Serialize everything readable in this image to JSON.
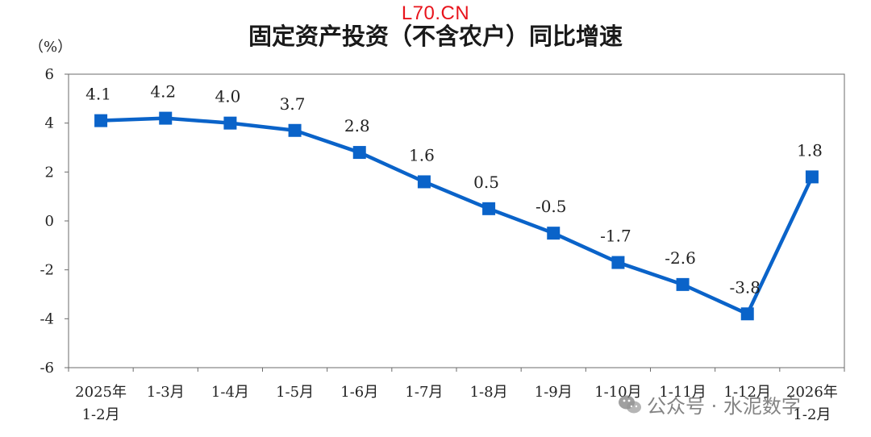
{
  "watermark_top": "L70.CN",
  "watermark_bottom": "公众号 · 水泥数字",
  "colors": {
    "series": "#0a63c9",
    "axis": "#555555",
    "text": "#222222",
    "watermark": "#e8141c"
  },
  "chart_data": {
    "type": "line",
    "title": "固定资产投资（不含农户）同比增速",
    "ylabel": "（%）",
    "xlabel": "",
    "ylim": [
      -6,
      6
    ],
    "yticks": [
      6,
      4,
      2,
      0,
      -2,
      -4,
      -6
    ],
    "grid": false,
    "categories": [
      [
        "2025年",
        "1-2月"
      ],
      [
        "1-3月"
      ],
      [
        "1-4月"
      ],
      [
        "1-5月"
      ],
      [
        "1-6月"
      ],
      [
        "1-7月"
      ],
      [
        "1-8月"
      ],
      [
        "1-9月"
      ],
      [
        "1-10月"
      ],
      [
        "1-11月"
      ],
      [
        "1-12月"
      ],
      [
        "2026年",
        "1-2月"
      ]
    ],
    "series": [
      {
        "values": [
          4.1,
          4.2,
          4.0,
          3.7,
          2.8,
          1.6,
          0.5,
          -0.5,
          -1.7,
          -2.6,
          -3.8,
          1.8
        ],
        "labels": [
          "4.1",
          "4.2",
          "4.0",
          "3.7",
          "2.8",
          "1.6",
          "0.5",
          "-0.5",
          "-1.7",
          "-2.6",
          "-3.8",
          "1.8"
        ]
      }
    ]
  }
}
